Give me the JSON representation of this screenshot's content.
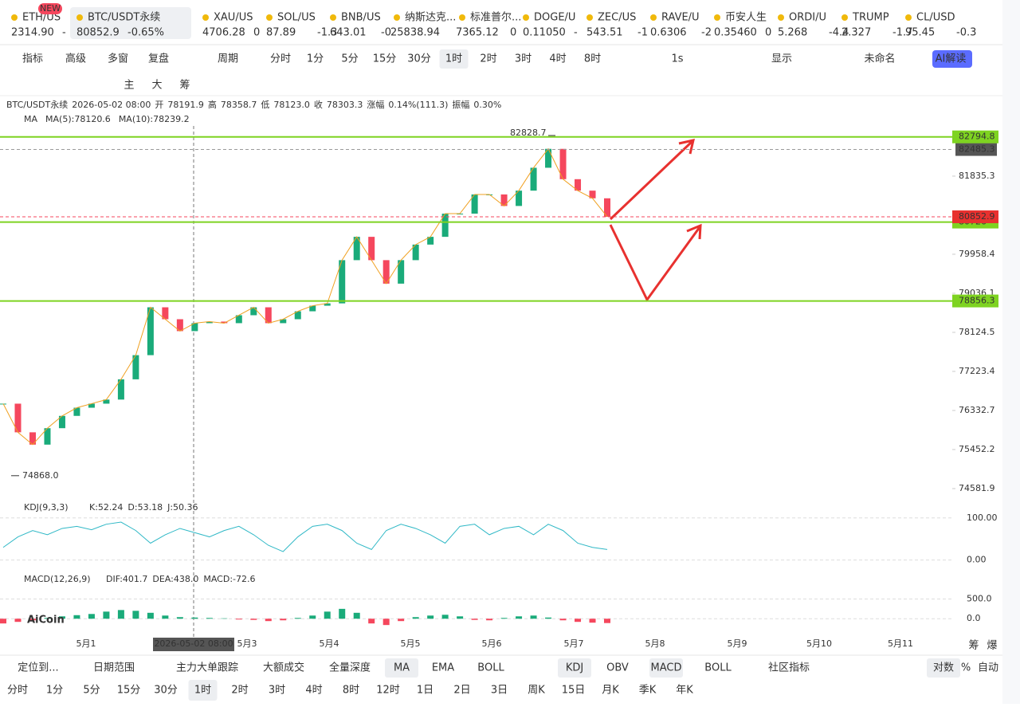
{
  "tickers": [
    {
      "symbol": "ETH/US",
      "price": "2314.90",
      "change": "-"
    },
    {
      "symbol": "BTC/USDT永续",
      "price": "80852.9",
      "change": "-0.65%"
    },
    {
      "symbol": "XAU/US",
      "price": "4706.28",
      "change": "0"
    },
    {
      "symbol": "SOL/US",
      "price": "87.89",
      "change": "-1.3"
    },
    {
      "symbol": "BNB/US",
      "price": "643.01",
      "change": "-0"
    },
    {
      "symbol": "纳斯达克...",
      "price": "25838.94",
      "change": ""
    },
    {
      "symbol": "标准普尔...",
      "price": "7365.12",
      "change": "0"
    },
    {
      "symbol": "DOGE/U",
      "price": "0.11050",
      "change": "-"
    },
    {
      "symbol": "ZEC/US",
      "price": "543.51",
      "change": "-1"
    },
    {
      "symbol": "RAVE/U",
      "price": "0.6306",
      "change": "-2"
    },
    {
      "symbol": "币安人生",
      "price": "0.35460",
      "change": "0"
    },
    {
      "symbol": "ORDI/U",
      "price": "5.268",
      "change": "-4.4"
    },
    {
      "symbol": "TRUMP",
      "price": "2.327",
      "change": "-1.7"
    },
    {
      "symbol": "CL/USD",
      "price": "95.45",
      "change": "-0.3"
    }
  ],
  "badge": "NEW",
  "toolbar": {
    "left": [
      "指标",
      "高级",
      "多窗",
      "复盘",
      "周期"
    ],
    "intervals": [
      "分时",
      "1分",
      "5分",
      "15分",
      "30分",
      "1时",
      "2时",
      "3时",
      "4时",
      "8时"
    ],
    "right": [
      "1s",
      "显示",
      "未命名",
      "AI解读"
    ]
  },
  "tools": [
    "主",
    "大",
    "筹"
  ],
  "chart": {
    "type": "candlestick",
    "info": [
      "BTC/USDT永续",
      "2026-05-02 08:00",
      "开",
      "78191.9",
      "高",
      "78358.7",
      "低",
      "78123.0",
      "收",
      "78303.3",
      "涨幅",
      "0.14%(111.3)",
      "振幅",
      "0.30%"
    ],
    "ma": [
      "MA",
      "MA(5):78120.6",
      "MA(10):78239.2"
    ],
    "log_scale": true,
    "ylim": [
      74458,
      83815
    ],
    "yticks": [
      81835.3,
      79958.4,
      79036.1,
      78124.5,
      77223.4,
      76332.7,
      75452.2,
      74581.9
    ],
    "closes": [
      76487,
      75839,
      75562,
      75932,
      76210,
      76395,
      76487,
      76580,
      77042,
      77597,
      78708,
      78430,
      78153,
      78338,
      78375,
      78338,
      78523,
      78708,
      78338,
      78430,
      78615,
      78745,
      78800,
      79818,
      80373,
      79818,
      79263,
      79818,
      80188,
      80373,
      80928,
      80928,
      81391,
      81391,
      81113,
      81483,
      82039,
      82501,
      81761,
      81483,
      81298,
      80852.9
    ],
    "high": 82828.7,
    "low": {
      "value": 74868,
      "label": "74868.0"
    },
    "levels": [
      82794.8,
      80726,
      78856.3
    ],
    "level_color": "#7ed321",
    "alert_line": 82485.3,
    "last_price": 80852.9,
    "dates": [
      "5月1",
      "5月3",
      "5月4",
      "5月5",
      "5月6",
      "5月7",
      "5月8",
      "5月9",
      "5月10",
      "5月11"
    ],
    "cursor": "2026-05-02 08:00",
    "kdj": {
      "title": "KDJ(9,3,3)",
      "labels": [
        "K:52.24",
        "D:53.18",
        "J:50.36"
      ],
      "ylim": [
        -14,
        109
      ],
      "yticks": [
        {
          "value": 100,
          "label": "100.00"
        },
        {
          "value": 0,
          "label": "0.00"
        }
      ],
      "k": [
        30,
        55,
        70,
        60,
        75,
        80,
        72,
        85,
        90,
        70,
        40,
        60,
        75,
        65,
        55,
        70,
        80,
        60,
        35,
        20,
        55,
        80,
        85,
        70,
        40,
        25,
        70,
        85,
        75,
        60,
        40,
        80,
        85,
        60,
        75,
        80,
        60,
        85,
        70,
        40,
        30,
        25
      ]
    },
    "macd": {
      "title": "MACD(12,26,9)",
      "labels": [
        "DIF:401.7",
        "DEA:438.0",
        "MACD:-72.6"
      ],
      "ylim": [
        -379,
        833
      ],
      "yticks": [
        {
          "value": 500,
          "label": "500.0"
        },
        {
          "value": 0,
          "label": "0.0"
        }
      ],
      "hist": [
        -120,
        -80,
        -40,
        20,
        60,
        90,
        120,
        180,
        220,
        200,
        150,
        80,
        40,
        30,
        20,
        10,
        -20,
        -30,
        -60,
        -40,
        20,
        80,
        180,
        250,
        150,
        -120,
        -160,
        -60,
        40,
        80,
        100,
        60,
        -30,
        -40,
        20,
        60,
        80,
        30,
        -40,
        -80,
        -100,
        -110
      ]
    }
  },
  "side": [
    "筹",
    "爆"
  ],
  "bottom": {
    "row1": [
      "定位到...",
      "日期范围",
      "主力大单跟踪",
      "大额成交",
      "全量深度",
      "MA",
      "EMA",
      "BOLL",
      "KDJ",
      "OBV",
      "MACD",
      "BOLL",
      "社区指标",
      "对数",
      "%",
      "自动"
    ],
    "row2": [
      "分时",
      "1分",
      "5分",
      "15分",
      "30分",
      "1时",
      "2时",
      "3时",
      "4时",
      "8时",
      "12时",
      "1日",
      "2日",
      "3日",
      "周K",
      "15日",
      "月K",
      "季K",
      "年K"
    ]
  },
  "logo": "AiCoin"
}
